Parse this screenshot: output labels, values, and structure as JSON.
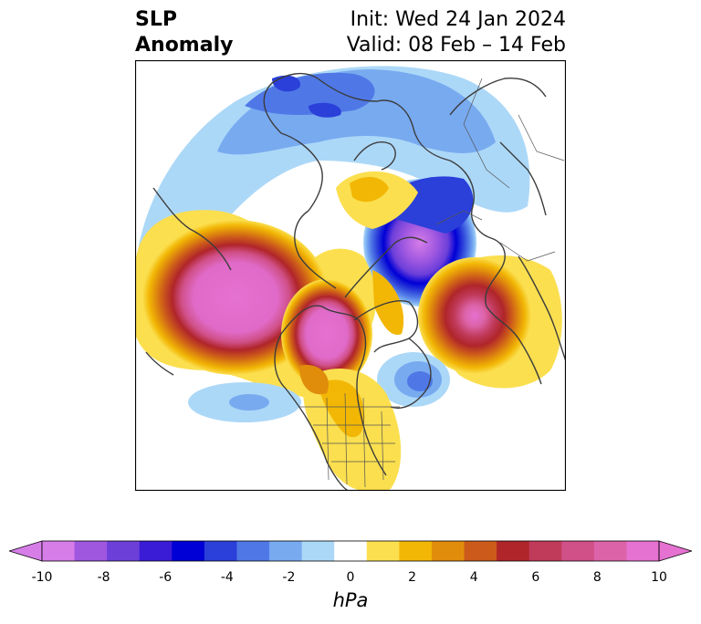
{
  "title": {
    "variable_line1": "SLP",
    "variable_line2": "Anomaly",
    "init": "Init: Wed 24 Jan 2024",
    "valid": "Valid: 08 Feb – 14 Feb"
  },
  "colorbar": {
    "unit": "hPa",
    "tick_labels": [
      "-10",
      "-8",
      "-6",
      "-4",
      "-2",
      "0",
      "2",
      "4",
      "6",
      "8",
      "10"
    ],
    "levels": [
      -10,
      -9,
      -8,
      -7,
      -6,
      -5,
      -4,
      -3,
      -2,
      -1,
      1,
      2,
      3,
      4,
      5,
      6,
      7,
      8,
      9,
      10
    ],
    "colors": [
      "#d67de8",
      "#9f57e0",
      "#6c3fd9",
      "#3a1bd6",
      "#0000d6",
      "#2b3fd9",
      "#4f78e6",
      "#78aaf0",
      "#acd8f8",
      "#ffffff",
      "#fbdf4f",
      "#f2b705",
      "#e08d0c",
      "#cc5a1a",
      "#b0252a",
      "#c03a5a",
      "#d05088",
      "#dc63a8",
      "#e571d0"
    ],
    "extend_min_color": "#d67de8",
    "extend_max_color": "#e571d0"
  },
  "map": {
    "projection": "north-polar-stereographic",
    "anomalies": [
      {
        "name": "Alaska/NE Pacific high",
        "peak_hPa": 10
      },
      {
        "name": "Siberia low",
        "peak_hPa": -10
      },
      {
        "name": "North Atlantic high",
        "peak_hPa": 9
      },
      {
        "name": "Canada low",
        "peak_hPa": -4
      },
      {
        "name": "Eastern US high",
        "peak_hPa": 3
      }
    ]
  }
}
